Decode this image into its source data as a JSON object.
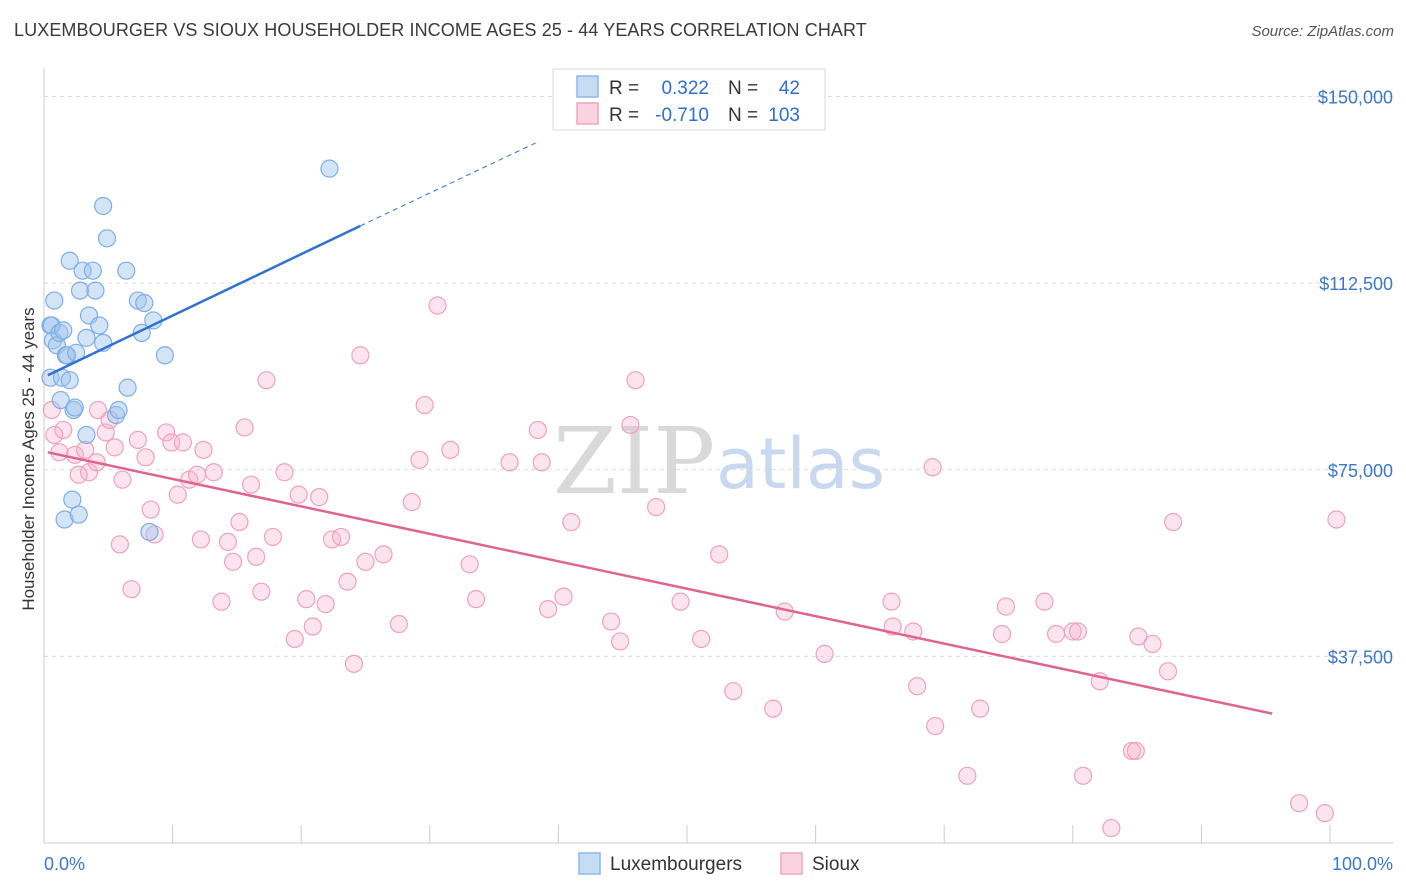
{
  "title": "LUXEMBOURGER VS SIOUX HOUSEHOLDER INCOME AGES 25 - 44 YEARS CORRELATION CHART",
  "source": "Source: ZipAtlas.com",
  "watermark": {
    "zip": "ZIP",
    "atlas": "atlas"
  },
  "colors": {
    "blue": "#8fb8e8",
    "blue_line": "#2f72cf",
    "pink": "#f0a6bf",
    "pink_line": "#e0648f",
    "tick": "#3b78c9"
  },
  "legend": {
    "r_label": "R =",
    "n_label": "N =",
    "rows": [
      {
        "r": "0.322",
        "n": "42",
        "color": "#8fb8e8"
      },
      {
        "r": "-0.710",
        "n": "103",
        "color": "#f0a6bf"
      }
    ]
  },
  "bottom_legend": [
    "Luxembourgers",
    "Sioux"
  ],
  "chart_data": {
    "type": "scatter",
    "title": "LUXEMBOURGER VS SIOUX HOUSEHOLDER INCOME AGES 25 - 44 YEARS CORRELATION CHART",
    "xlabel": "",
    "ylabel": "Householder Income Ages 25 - 44 years",
    "xlim": [
      0,
      100
    ],
    "ylim": [
      0,
      152000
    ],
    "x_tick_labels": [
      "0.0%",
      "100.0%"
    ],
    "y_ticks": [
      37500,
      75000,
      112500,
      150000
    ],
    "y_tick_labels": [
      "$37,500",
      "$75,000",
      "$112,500",
      "$150,000"
    ],
    "grid": true,
    "legend_position": "top-center",
    "series": [
      {
        "name": "Luxembourgers",
        "r": 0.322,
        "n": 42,
        "trend": {
          "x": [
            0.3,
            24.6
          ],
          "y": [
            94000,
            124000
          ],
          "dashed_to": {
            "x": 38.5,
            "y": 141000
          }
        },
        "points": [
          [
            0.5,
            93500
          ],
          [
            0.5,
            104000
          ],
          [
            0.6,
            104000
          ],
          [
            0.7,
            101000
          ],
          [
            0.8,
            109000
          ],
          [
            1.0,
            100000
          ],
          [
            1.2,
            102500
          ],
          [
            1.3,
            89000
          ],
          [
            1.4,
            93500
          ],
          [
            1.5,
            103000
          ],
          [
            1.6,
            65000
          ],
          [
            1.7,
            98000
          ],
          [
            1.8,
            98000
          ],
          [
            2.0,
            117000
          ],
          [
            2.0,
            93000
          ],
          [
            2.2,
            69000
          ],
          [
            2.3,
            87000
          ],
          [
            2.4,
            87500
          ],
          [
            2.5,
            98500
          ],
          [
            2.7,
            66000
          ],
          [
            2.8,
            111000
          ],
          [
            3.0,
            115000
          ],
          [
            3.3,
            82000
          ],
          [
            3.3,
            101500
          ],
          [
            3.5,
            106000
          ],
          [
            3.8,
            115000
          ],
          [
            4.0,
            111000
          ],
          [
            4.3,
            104000
          ],
          [
            4.6,
            128000
          ],
          [
            4.6,
            100500
          ],
          [
            4.9,
            121500
          ],
          [
            5.6,
            86000
          ],
          [
            5.8,
            87000
          ],
          [
            6.4,
            115000
          ],
          [
            6.5,
            91500
          ],
          [
            7.3,
            109000
          ],
          [
            7.6,
            102500
          ],
          [
            7.8,
            108500
          ],
          [
            8.2,
            62500
          ],
          [
            8.5,
            105000
          ],
          [
            9.4,
            98000
          ],
          [
            22.2,
            135500
          ]
        ]
      },
      {
        "name": "Sioux",
        "r": -0.71,
        "n": 103,
        "trend": {
          "x": [
            0.3,
            95.5
          ],
          "y": [
            78500,
            26000
          ]
        },
        "points": [
          [
            0.6,
            87000
          ],
          [
            0.8,
            82000
          ],
          [
            1.2,
            78500
          ],
          [
            1.5,
            83000
          ],
          [
            2.4,
            78000
          ],
          [
            2.7,
            74000
          ],
          [
            3.2,
            79000
          ],
          [
            3.5,
            74500
          ],
          [
            4.1,
            76500
          ],
          [
            4.2,
            87000
          ],
          [
            4.8,
            82500
          ],
          [
            5.1,
            85000
          ],
          [
            5.5,
            79500
          ],
          [
            5.9,
            60000
          ],
          [
            6.1,
            73000
          ],
          [
            6.8,
            51000
          ],
          [
            7.3,
            81000
          ],
          [
            7.9,
            77500
          ],
          [
            8.3,
            67000
          ],
          [
            8.6,
            62000
          ],
          [
            9.5,
            82500
          ],
          [
            9.9,
            80500
          ],
          [
            10.4,
            70000
          ],
          [
            10.8,
            80500
          ],
          [
            11.3,
            73000
          ],
          [
            11.9,
            74000
          ],
          [
            12.2,
            61000
          ],
          [
            12.4,
            79000
          ],
          [
            13.2,
            74500
          ],
          [
            13.8,
            48500
          ],
          [
            14.3,
            60500
          ],
          [
            14.7,
            56500
          ],
          [
            15.2,
            64500
          ],
          [
            15.6,
            83500
          ],
          [
            16.1,
            72000
          ],
          [
            16.5,
            57500
          ],
          [
            16.9,
            50500
          ],
          [
            17.3,
            93000
          ],
          [
            17.8,
            61500
          ],
          [
            18.7,
            74500
          ],
          [
            19.5,
            41000
          ],
          [
            19.8,
            70000
          ],
          [
            20.4,
            49000
          ],
          [
            20.9,
            43500
          ],
          [
            21.4,
            69500
          ],
          [
            21.9,
            48000
          ],
          [
            22.4,
            61000
          ],
          [
            23.1,
            61500
          ],
          [
            23.6,
            52500
          ],
          [
            24.1,
            36000
          ],
          [
            24.6,
            98000
          ],
          [
            25.0,
            56500
          ],
          [
            26.4,
            58000
          ],
          [
            27.6,
            44000
          ],
          [
            28.6,
            68500
          ],
          [
            29.2,
            77000
          ],
          [
            29.6,
            88000
          ],
          [
            30.6,
            108000
          ],
          [
            31.6,
            79000
          ],
          [
            33.1,
            56000
          ],
          [
            33.6,
            49000
          ],
          [
            36.2,
            76500
          ],
          [
            38.4,
            83000
          ],
          [
            38.7,
            76500
          ],
          [
            39.2,
            47000
          ],
          [
            40.4,
            49500
          ],
          [
            41.0,
            64500
          ],
          [
            44.1,
            44500
          ],
          [
            44.8,
            40500
          ],
          [
            46.0,
            93000
          ],
          [
            45.6,
            84000
          ],
          [
            47.6,
            67500
          ],
          [
            49.5,
            48500
          ],
          [
            51.1,
            41000
          ],
          [
            52.5,
            58000
          ],
          [
            53.6,
            30500
          ],
          [
            56.7,
            27000
          ],
          [
            57.6,
            46500
          ],
          [
            60.7,
            38000
          ],
          [
            65.9,
            48500
          ],
          [
            66.0,
            43500
          ],
          [
            67.6,
            42500
          ],
          [
            67.9,
            31500
          ],
          [
            69.1,
            75500
          ],
          [
            69.3,
            23500
          ],
          [
            71.8,
            13500
          ],
          [
            72.8,
            27000
          ],
          [
            74.5,
            42000
          ],
          [
            74.8,
            47500
          ],
          [
            77.8,
            48500
          ],
          [
            78.7,
            42000
          ],
          [
            80.0,
            42500
          ],
          [
            80.4,
            42500
          ],
          [
            80.8,
            13500
          ],
          [
            82.1,
            32500
          ],
          [
            83.0,
            3000
          ],
          [
            84.6,
            18500
          ],
          [
            84.9,
            18500
          ],
          [
            85.1,
            41500
          ],
          [
            86.2,
            40000
          ],
          [
            87.4,
            34500
          ],
          [
            87.8,
            64500
          ],
          [
            97.6,
            8000
          ],
          [
            99.6,
            6000
          ],
          [
            100.5,
            65000
          ]
        ]
      }
    ]
  }
}
